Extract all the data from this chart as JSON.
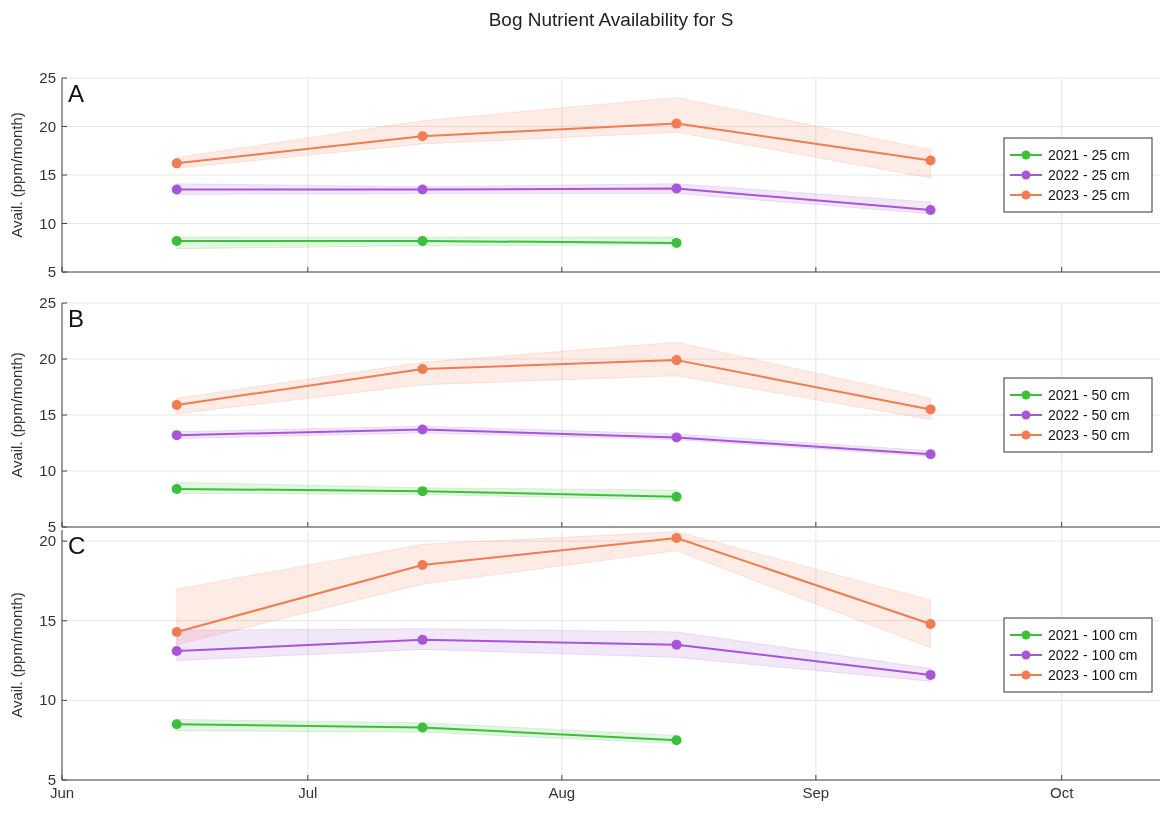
{
  "chart_data": [
    {
      "type": "line",
      "title": "Bog Nutrient Availability for S",
      "annotations": [
        "A"
      ],
      "ylabel": "Avail. (ppm/month)",
      "x": [
        "--06-15",
        "--07-15",
        "--08-15",
        "--09-15"
      ],
      "xlim": [
        "--06-01",
        "--10-13"
      ],
      "xticks": [
        {
          "value": "--06-01",
          "label": null
        },
        {
          "value": "--07-01",
          "label": null
        },
        {
          "value": "--08-01",
          "label": null
        },
        {
          "value": "--09-01",
          "label": null
        },
        {
          "value": "--10-01",
          "label": null
        }
      ],
      "ylim": [
        5,
        25
      ],
      "yticks": [
        5,
        10,
        15,
        20,
        25
      ],
      "tick_labels": "y",
      "grid": true,
      "legend": "right",
      "marker": "circle",
      "series": [
        {
          "name": "2021 - 25 cm",
          "color": "#3cc03c",
          "values": [
            8.2,
            8.2,
            8.0,
            null
          ],
          "lower": [
            7.4,
            7.7,
            7.8,
            null
          ],
          "upper": [
            8.6,
            8.6,
            8.6,
            null
          ]
        },
        {
          "name": "2022 - 25 cm",
          "color": "#a855d9",
          "values": [
            13.5,
            13.5,
            13.6,
            11.4
          ],
          "lower": [
            13.0,
            13.1,
            13.1,
            11.0
          ],
          "upper": [
            14.1,
            13.8,
            14.1,
            12.2
          ]
        },
        {
          "name": "2023 - 25 cm",
          "color": "#f07c50",
          "values": [
            16.2,
            19.0,
            20.3,
            16.5
          ],
          "lower": [
            15.7,
            18.2,
            19.4,
            14.7
          ],
          "upper": [
            16.8,
            20.6,
            23.0,
            17.6
          ]
        }
      ]
    },
    {
      "type": "line",
      "annotations": [
        "B"
      ],
      "ylabel": "Avail. (ppm/month)",
      "x": [
        "--06-15",
        "--07-15",
        "--08-15",
        "--09-15"
      ],
      "xlim": [
        "--06-01",
        "--10-13"
      ],
      "xticks": [
        {
          "value": "--06-01",
          "label": null
        },
        {
          "value": "--07-01",
          "label": null
        },
        {
          "value": "--08-01",
          "label": null
        },
        {
          "value": "--09-01",
          "label": null
        },
        {
          "value": "--10-01",
          "label": null
        }
      ],
      "ylim": [
        5,
        25
      ],
      "yticks": [
        5,
        10,
        15,
        20,
        25
      ],
      "tick_labels": "y",
      "grid": true,
      "legend": "right",
      "marker": "circle",
      "series": [
        {
          "name": "2021 - 50 cm",
          "color": "#3cc03c",
          "values": [
            8.4,
            8.2,
            7.7,
            null
          ],
          "lower": [
            8.0,
            7.9,
            7.4,
            null
          ],
          "upper": [
            9.0,
            8.5,
            8.3,
            null
          ]
        },
        {
          "name": "2022 - 50 cm",
          "color": "#a855d9",
          "values": [
            13.2,
            13.7,
            13.0,
            11.5
          ],
          "lower": [
            12.9,
            13.4,
            12.8,
            11.3
          ],
          "upper": [
            13.5,
            14.0,
            13.3,
            11.8
          ]
        },
        {
          "name": "2023 - 50 cm",
          "color": "#f07c50",
          "values": [
            15.9,
            19.1,
            19.9,
            15.5
          ],
          "lower": [
            15.1,
            17.7,
            18.5,
            14.6
          ],
          "upper": [
            16.5,
            19.7,
            21.5,
            16.5
          ]
        }
      ]
    },
    {
      "type": "line",
      "annotations": [
        "C"
      ],
      "ylabel": "Avail. (ppm/month)",
      "x": [
        "--06-15",
        "--07-15",
        "--08-15",
        "--09-15"
      ],
      "xlim": [
        "--06-01",
        "--10-13"
      ],
      "xticks": [
        {
          "value": "--06-01",
          "label": "Jun"
        },
        {
          "value": "--07-01",
          "label": "Jul"
        },
        {
          "value": "--08-01",
          "label": "Aug"
        },
        {
          "value": "--09-01",
          "label": "Sep"
        },
        {
          "value": "--10-01",
          "label": "Oct"
        }
      ],
      "ylim": [
        5,
        20.7
      ],
      "yticks": [
        5,
        10,
        15,
        20
      ],
      "grid": true,
      "legend": "right",
      "marker": "circle",
      "series": [
        {
          "name": "2021 - 100 cm",
          "color": "#3cc03c",
          "values": [
            8.5,
            8.3,
            7.5,
            null
          ],
          "lower": [
            8.1,
            8.0,
            7.3,
            null
          ],
          "upper": [
            8.8,
            8.6,
            7.8,
            null
          ]
        },
        {
          "name": "2022 - 100 cm",
          "color": "#a855d9",
          "values": [
            13.1,
            13.8,
            13.5,
            11.6
          ],
          "lower": [
            12.5,
            13.2,
            12.7,
            11.2
          ],
          "upper": [
            14.4,
            14.5,
            14.3,
            12.0
          ]
        },
        {
          "name": "2023 - 100 cm",
          "color": "#f07c50",
          "values": [
            14.3,
            18.5,
            20.2,
            14.8
          ],
          "lower": [
            13.5,
            17.3,
            19.4,
            13.3
          ],
          "upper": [
            17.0,
            19.8,
            20.6,
            16.3
          ]
        }
      ]
    }
  ]
}
